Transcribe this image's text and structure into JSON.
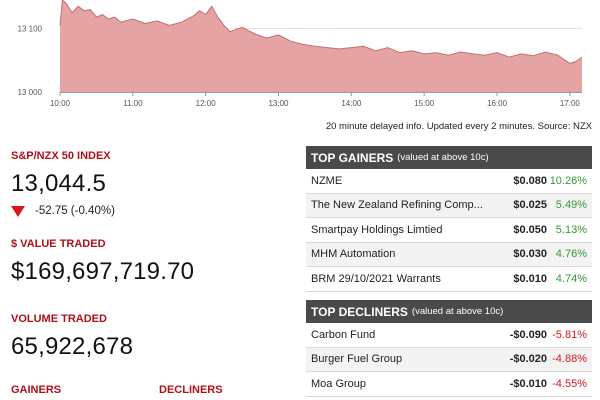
{
  "chart_data": {
    "type": "area",
    "x_ticks": [
      "10:00",
      "11:00",
      "12:00",
      "13:00",
      "14:00",
      "15:00",
      "16:00",
      "17:00"
    ],
    "y_ticks": [
      13100,
      13000
    ],
    "ylim": [
      13000,
      13145
    ],
    "x_range": [
      "10:00",
      "17:10"
    ],
    "fill_color": "#e5a3a3",
    "line_color": "#c0706f",
    "grid": true,
    "series": [
      {
        "x": [
          "10:00",
          "10:02",
          "10:05",
          "10:10",
          "10:15",
          "10:20",
          "10:25",
          "10:30",
          "10:35",
          "10:40",
          "10:45",
          "10:50",
          "11:00",
          "11:10",
          "11:20",
          "11:30",
          "11:40",
          "11:50",
          "11:55",
          "12:00",
          "12:05",
          "12:10",
          "12:15",
          "12:20",
          "12:30",
          "12:40",
          "12:50",
          "13:00",
          "13:10",
          "13:20",
          "13:30",
          "13:40",
          "13:50",
          "14:00",
          "14:10",
          "14:20",
          "14:30",
          "14:40",
          "14:50",
          "15:00",
          "15:10",
          "15:20",
          "15:30",
          "15:40",
          "15:50",
          "16:00",
          "16:10",
          "16:20",
          "16:30",
          "16:40",
          "16:50",
          "17:00",
          "17:05",
          "17:10"
        ],
        "values": [
          13105,
          13145,
          13140,
          13125,
          13135,
          13128,
          13130,
          13118,
          13122,
          13115,
          13118,
          13110,
          13115,
          13108,
          13112,
          13105,
          13110,
          13120,
          13128,
          13122,
          13135,
          13118,
          13105,
          13095,
          13102,
          13092,
          13085,
          13090,
          13080,
          13075,
          13072,
          13070,
          13068,
          13070,
          13072,
          13065,
          13070,
          13062,
          13065,
          13060,
          13062,
          13058,
          13063,
          13060,
          13058,
          13062,
          13055,
          13060,
          13057,
          13063,
          13058,
          13045,
          13048,
          13055
        ]
      }
    ]
  },
  "chart_note": "20 minute delayed info. Updated every 2 minutes. Source: NZX",
  "index": {
    "label": "S&P/NZX 50 INDEX",
    "value": "13,044.5",
    "change": "-52.75 (-0.40%)"
  },
  "value_traded": {
    "label": "$ VALUE TRADED",
    "value": "$169,697,719.70"
  },
  "volume_traded": {
    "label": "VOLUME TRADED",
    "value": "65,922,678"
  },
  "bottom_labels": {
    "gainers": "GAINERS",
    "decliners": "DECLINERS"
  },
  "gainers": {
    "title": "TOP GAINERS",
    "subtitle": "(valued at above 10c)",
    "rows": [
      {
        "name": "NZME",
        "price": "$0.080",
        "pct": "10.26%"
      },
      {
        "name": "The New Zealand Refining Comp...",
        "price": "$0.025",
        "pct": "5.49%"
      },
      {
        "name": "Smartpay Holdings Limtied",
        "price": "$0.050",
        "pct": "5.13%"
      },
      {
        "name": "MHM Automation",
        "price": "$0.030",
        "pct": "4.76%"
      },
      {
        "name": "BRM 29/10/2021 Warrants",
        "price": "$0.010",
        "pct": "4.74%"
      }
    ]
  },
  "decliners": {
    "title": "TOP DECLINERS",
    "subtitle": "(valued at above 10c)",
    "rows": [
      {
        "name": "Carbon Fund",
        "price": "-$0.090",
        "pct": "-5.81%"
      },
      {
        "name": "Burger Fuel Group",
        "price": "-$0.020",
        "pct": "-4.88%"
      },
      {
        "name": "Moa Group",
        "price": "-$0.010",
        "pct": "-4.55%"
      }
    ]
  },
  "colors": {
    "accent": "#b0101a",
    "down": "#d81520",
    "up": "#2e9a34",
    "header": "#4a4a4a"
  }
}
